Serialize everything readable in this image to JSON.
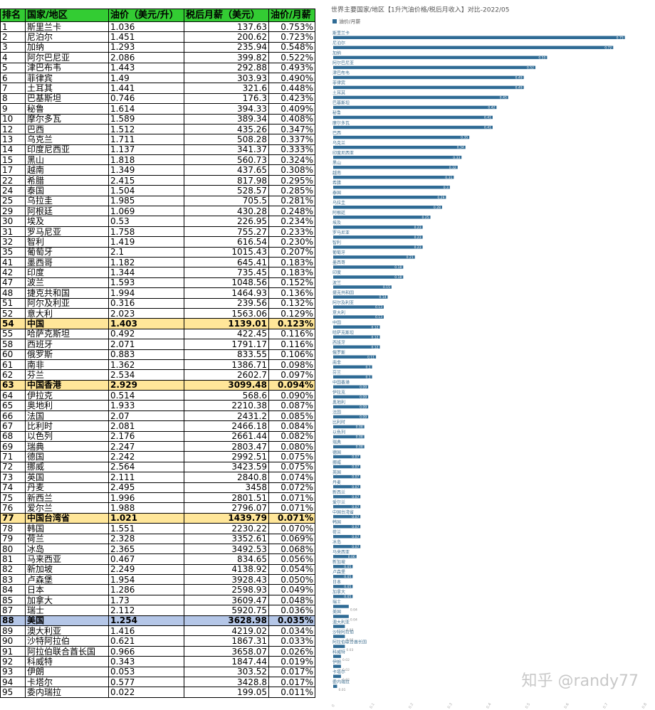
{
  "table": {
    "header": [
      "排名",
      "国家/地区",
      "油价（美元/升）",
      "税后月薪（美元）",
      "油价/月薪"
    ],
    "header_color": "#33cc33",
    "right_aligned_columns": [
      3,
      4
    ],
    "row_highlights": [
      {
        "row": 29,
        "color": "#ffe699"
      },
      {
        "row": 35,
        "color": "#ffe699"
      },
      {
        "row": 48,
        "color": "#ffe699"
      },
      {
        "row": 58,
        "color": "#b4c6e7"
      }
    ],
    "rows": [
      [
        "1",
        "斯里兰卡",
        "1.036",
        "137.63",
        "0.753%"
      ],
      [
        "2",
        "尼泊尔",
        "1.451",
        "200.62",
        "0.723%"
      ],
      [
        "3",
        "加纳",
        "1.293",
        "235.94",
        "0.548%"
      ],
      [
        "4",
        "阿尔巴尼亚",
        "2.086",
        "399.82",
        "0.522%"
      ],
      [
        "5",
        "津巴布韦",
        "1.443",
        "292.88",
        "0.493%"
      ],
      [
        "6",
        "菲律宾",
        "1.49",
        "303.93",
        "0.490%"
      ],
      [
        "7",
        "土耳其",
        "1.441",
        "321.6",
        "0.448%"
      ],
      [
        "8",
        "巴基斯坦",
        "0.746",
        "176.3",
        "0.423%"
      ],
      [
        "9",
        "秘鲁",
        "1.614",
        "394.33",
        "0.409%"
      ],
      [
        "10",
        "摩尔多瓦",
        "1.589",
        "389.34",
        "0.408%"
      ],
      [
        "12",
        "巴西",
        "1.512",
        "435.26",
        "0.347%"
      ],
      [
        "13",
        "乌克兰",
        "1.711",
        "508.28",
        "0.337%"
      ],
      [
        "14",
        "印度尼西亚",
        "1.137",
        "341.37",
        "0.333%"
      ],
      [
        "15",
        "黑山",
        "1.818",
        "560.73",
        "0.324%"
      ],
      [
        "17",
        "越南",
        "1.349",
        "437.65",
        "0.308%"
      ],
      [
        "22",
        "希腊",
        "2.415",
        "817.98",
        "0.295%"
      ],
      [
        "24",
        "泰国",
        "1.504",
        "528.57",
        "0.285%"
      ],
      [
        "25",
        "乌拉圭",
        "1.985",
        "705.5",
        "0.281%"
      ],
      [
        "29",
        "阿根廷",
        "1.069",
        "430.28",
        "0.248%"
      ],
      [
        "30",
        "埃及",
        "0.53",
        "226.95",
        "0.234%"
      ],
      [
        "31",
        "罗马尼亚",
        "1.758",
        "755.27",
        "0.233%"
      ],
      [
        "32",
        "智利",
        "1.419",
        "616.54",
        "0.230%"
      ],
      [
        "35",
        "葡萄牙",
        "2.1",
        "1015.43",
        "0.207%"
      ],
      [
        "41",
        "墨西哥",
        "1.182",
        "645.41",
        "0.183%"
      ],
      [
        "42",
        "印度",
        "1.344",
        "735.45",
        "0.183%"
      ],
      [
        "47",
        "波兰",
        "1.593",
        "1048.56",
        "0.152%"
      ],
      [
        "48",
        "捷克共和国",
        "1.994",
        "1464.93",
        "0.136%"
      ],
      [
        "51",
        "阿尔及利亚",
        "0.316",
        "239.56",
        "0.132%"
      ],
      [
        "52",
        "意大利",
        "2.023",
        "1563.06",
        "0.129%"
      ],
      [
        "54",
        "中国",
        "1.403",
        "1139.01",
        "0.123%"
      ],
      [
        "55",
        "哈萨克斯坦",
        "0.492",
        "422.45",
        "0.116%"
      ],
      [
        "58",
        "西班牙",
        "2.071",
        "1791.17",
        "0.116%"
      ],
      [
        "60",
        "俄罗斯",
        "0.883",
        "833.55",
        "0.106%"
      ],
      [
        "61",
        "南非",
        "1.362",
        "1386.71",
        "0.098%"
      ],
      [
        "62",
        "芬兰",
        "2.534",
        "2602.7",
        "0.097%"
      ],
      [
        "63",
        "中国香港",
        "2.929",
        "3099.48",
        "0.094%"
      ],
      [
        "64",
        "伊拉克",
        "0.514",
        "568.6",
        "0.090%"
      ],
      [
        "65",
        "奥地利",
        "1.933",
        "2210.38",
        "0.087%"
      ],
      [
        "66",
        "法国",
        "2.07",
        "2431.2",
        "0.085%"
      ],
      [
        "67",
        "比利时",
        "2.081",
        "2466.18",
        "0.084%"
      ],
      [
        "68",
        "以色列",
        "2.176",
        "2661.44",
        "0.082%"
      ],
      [
        "69",
        "瑞典",
        "2.247",
        "2803.47",
        "0.080%"
      ],
      [
        "71",
        "德国",
        "2.242",
        "2992.51",
        "0.075%"
      ],
      [
        "72",
        "挪威",
        "2.564",
        "3423.59",
        "0.075%"
      ],
      [
        "73",
        "英国",
        "2.111",
        "2840.8",
        "0.074%"
      ],
      [
        "74",
        "丹麦",
        "2.495",
        "3458",
        "0.072%"
      ],
      [
        "75",
        "新西兰",
        "1.996",
        "2801.51",
        "0.071%"
      ],
      [
        "76",
        "爱尔兰",
        "1.988",
        "2796.07",
        "0.071%"
      ],
      [
        "77",
        "中国台湾省",
        "1.021",
        "1439.79",
        "0.071%"
      ],
      [
        "78",
        "韩国",
        "1.551",
        "2230.22",
        "0.070%"
      ],
      [
        "79",
        "荷兰",
        "2.328",
        "3352.61",
        "0.069%"
      ],
      [
        "80",
        "冰岛",
        "2.365",
        "3492.53",
        "0.068%"
      ],
      [
        "81",
        "马来西亚",
        "0.467",
        "834.65",
        "0.056%"
      ],
      [
        "82",
        "新加坡",
        "2.249",
        "4138.92",
        "0.054%"
      ],
      [
        "83",
        "卢森堡",
        "1.954",
        "3928.43",
        "0.050%"
      ],
      [
        "84",
        "日本",
        "1.286",
        "2598.93",
        "0.049%"
      ],
      [
        "85",
        "加拿大",
        "1.73",
        "3609.47",
        "0.048%"
      ],
      [
        "87",
        "瑞士",
        "2.112",
        "5920.75",
        "0.036%"
      ],
      [
        "88",
        "美国",
        "1.254",
        "3628.98",
        "0.035%"
      ],
      [
        "89",
        "澳大利亚",
        "1.416",
        "4219.02",
        "0.034%"
      ],
      [
        "90",
        "沙特阿拉伯",
        "0.621",
        "1867.31",
        "0.033%"
      ],
      [
        "91",
        "阿拉伯联合酋长国",
        "0.966",
        "3658.07",
        "0.026%"
      ],
      [
        "92",
        "科威特",
        "0.343",
        "1847.44",
        "0.019%"
      ],
      [
        "93",
        "伊朗",
        "0.053",
        "303.52",
        "0.017%"
      ],
      [
        "94",
        "卡塔尔",
        "0.577",
        "3428.8",
        "0.017%"
      ],
      [
        "95",
        "委内瑞拉",
        "0.022",
        "199.05",
        "0.011%"
      ]
    ]
  },
  "chart_data": {
    "type": "barh",
    "title": "世界主要国家/地区【1升汽油价格/税后月收入】对比-2022/05",
    "categories": [
      "斯里兰卡",
      "尼泊尔",
      "加纳",
      "阿尔巴尼亚",
      "津巴布韦",
      "菲律宾",
      "土耳其",
      "巴基斯坦",
      "秘鲁",
      "摩尔多瓦",
      "巴西",
      "乌克兰",
      "印度尼西亚",
      "黑山",
      "越南",
      "希腊",
      "泰国",
      "乌拉圭",
      "阿根廷",
      "埃及",
      "罗马尼亚",
      "智利",
      "葡萄牙",
      "墨西哥",
      "印度",
      "波兰",
      "捷克共和国",
      "阿尔及利亚",
      "意大利",
      "中国",
      "哈萨克斯坦",
      "西班牙",
      "俄罗斯",
      "南非",
      "芬兰",
      "中国香港",
      "伊拉克",
      "奥地利",
      "法国",
      "比利时",
      "以色列",
      "瑞典",
      "德国",
      "挪威",
      "英国",
      "丹麦",
      "新西兰",
      "爱尔兰",
      "中国台湾省",
      "韩国",
      "荷兰",
      "冰岛",
      "马来西亚",
      "新加坡",
      "卢森堡",
      "日本",
      "加拿大",
      "瑞士",
      "美国",
      "澳大利亚",
      "沙特阿拉伯",
      "阿拉伯联合酋长国",
      "科威特",
      "伊朗",
      "卡塔尔",
      "委内瑞拉"
    ],
    "series": [
      {
        "name": "油价/月薪",
        "color": "#2f6b95",
        "values": [
          0.75,
          0.72,
          0.55,
          0.52,
          0.49,
          0.49,
          0.45,
          0.42,
          0.41,
          0.41,
          0.35,
          0.34,
          0.33,
          0.32,
          0.31,
          0.3,
          0.29,
          0.28,
          0.25,
          0.23,
          0.23,
          0.23,
          0.21,
          0.18,
          0.18,
          0.15,
          0.14,
          0.13,
          0.13,
          0.12,
          0.12,
          0.12,
          0.11,
          0.1,
          0.1,
          0.09,
          0.09,
          0.09,
          0.09,
          0.08,
          0.08,
          0.08,
          0.07,
          0.07,
          0.07,
          0.07,
          0.07,
          0.07,
          0.07,
          0.07,
          0.07,
          0.07,
          0.06,
          0.05,
          0.05,
          0.05,
          0.05,
          0.04,
          0.04,
          0.03,
          0.03,
          0.03,
          0.02,
          0.02,
          0.02,
          0.01
        ]
      }
    ],
    "xlim": [
      0,
      0.8
    ],
    "xticks": [
      0,
      0.1,
      0.2,
      0.3,
      0.4,
      0.5,
      0.6,
      0.7,
      0.8
    ],
    "grid": false,
    "legend": "top-left",
    "data_labels": true
  },
  "watermark": "知乎 @randy77"
}
